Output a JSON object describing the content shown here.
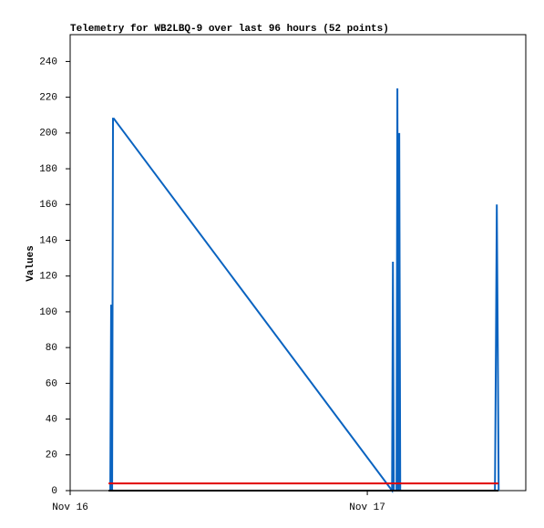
{
  "chart_data": {
    "type": "line",
    "title": "Telemetry for WB2LBQ-9 over last 96 hours (52 points)",
    "y_label": "Values",
    "xlim": [
      0,
      36.8
    ],
    "xticks": [
      {
        "value": 0,
        "label": "Nov 16"
      },
      {
        "value": 24,
        "label": "Nov 17"
      }
    ],
    "ylim": [
      0,
      255
    ],
    "yticks": [
      0,
      20,
      40,
      60,
      80,
      100,
      120,
      140,
      160,
      180,
      200,
      220,
      240
    ],
    "grid": false,
    "series": [
      {
        "color": "#0a63c0",
        "x": [
          3.24,
          3.31,
          3.39,
          3.46,
          3.53,
          26.0,
          26.07,
          26.14,
          26.36,
          26.43,
          26.51,
          26.58,
          26.66,
          34.31,
          34.39,
          34.46,
          34.54,
          34.61
        ],
        "values": [
          0,
          104,
          0,
          208,
          208,
          0,
          128,
          0,
          0,
          225,
          0,
          200,
          0,
          0,
          80,
          160,
          80,
          0
        ]
      },
      {
        "color": "#e00000",
        "x": [
          3.1,
          34.6
        ],
        "values": [
          4,
          4
        ]
      },
      {
        "color": "#000000",
        "x": [
          3.1,
          34.6
        ],
        "values": [
          0,
          0
        ]
      }
    ]
  }
}
